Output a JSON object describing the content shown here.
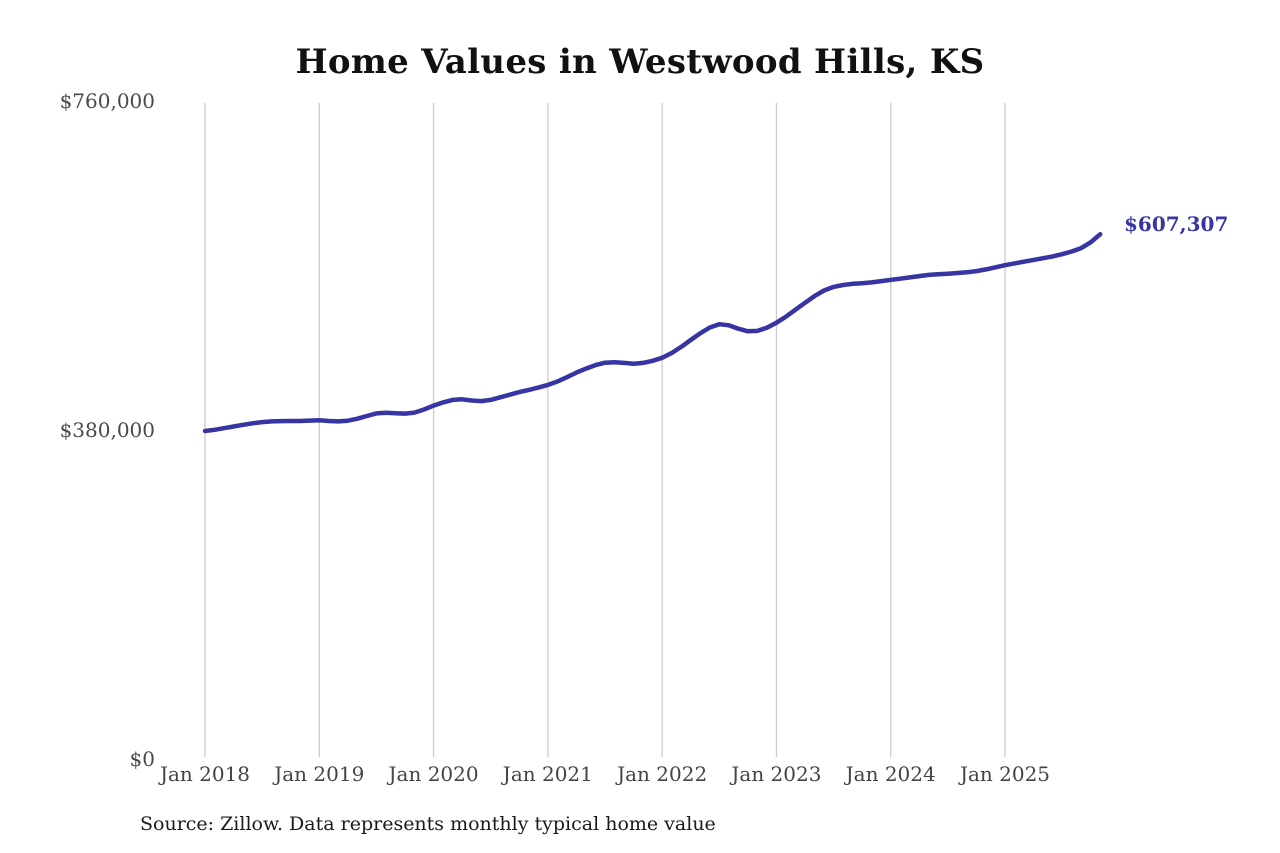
{
  "chart": {
    "title": "Home Values in Westwood Hills, KS",
    "end_label": "$607,307",
    "source": "Source: Zillow. Data represents monthly typical home value",
    "y_ticks": [
      "$760,000",
      "$380,000",
      "$0"
    ],
    "x_ticks": [
      "Jan 2018",
      "Jan 2019",
      "Jan 2020",
      "Jan 2021",
      "Jan 2022",
      "Jan 2023",
      "Jan 2024",
      "Jan 2025"
    ],
    "line_color": "#3734a3",
    "gridline_color": "#cccccc",
    "label_color": "#4a4a4a"
  },
  "chart_data": {
    "type": "line",
    "title": "Home Values in Westwood Hills, KS",
    "xlabel": "",
    "ylabel": "",
    "ylim": [
      0,
      760000
    ],
    "y_tick_values": [
      0,
      380000,
      760000
    ],
    "x_tick_labels": [
      "Jan 2018",
      "Jan 2019",
      "Jan 2020",
      "Jan 2021",
      "Jan 2022",
      "Jan 2023",
      "Jan 2024",
      "Jan 2025"
    ],
    "x_unit": "month",
    "x_start": "2018-01",
    "x_end": "2025-11",
    "grid": "vertical-only",
    "legend": "none",
    "end_value": 607307,
    "series": [
      {
        "name": "Monthly typical home value",
        "values": [
          380000,
          381400,
          383200,
          385200,
          387200,
          388900,
          390300,
          391100,
          391400,
          391500,
          391600,
          392000,
          392400,
          391600,
          391100,
          391900,
          394200,
          397300,
          400300,
          401000,
          400600,
          400100,
          401300,
          404800,
          409300,
          413000,
          415900,
          416600,
          415200,
          414500,
          415900,
          418900,
          421900,
          424900,
          427500,
          430100,
          433200,
          437200,
          442100,
          447400,
          452100,
          456100,
          458900,
          459500,
          458600,
          457700,
          458700,
          461100,
          464600,
          470100,
          477100,
          485100,
          492900,
          499600,
          503400,
          502100,
          498200,
          495100,
          495600,
          499300,
          505100,
          512100,
          520100,
          528100,
          535800,
          542300,
          546400,
          548600,
          550000,
          550700,
          551600,
          553100,
          554500,
          555900,
          557400,
          558900,
          560300,
          561100,
          561700,
          562500,
          563300,
          564700,
          566700,
          569100,
          571500,
          573600,
          575600,
          577600,
          579600,
          581700,
          584200,
          587300,
          591300,
          598000,
          607307
        ]
      }
    ]
  }
}
